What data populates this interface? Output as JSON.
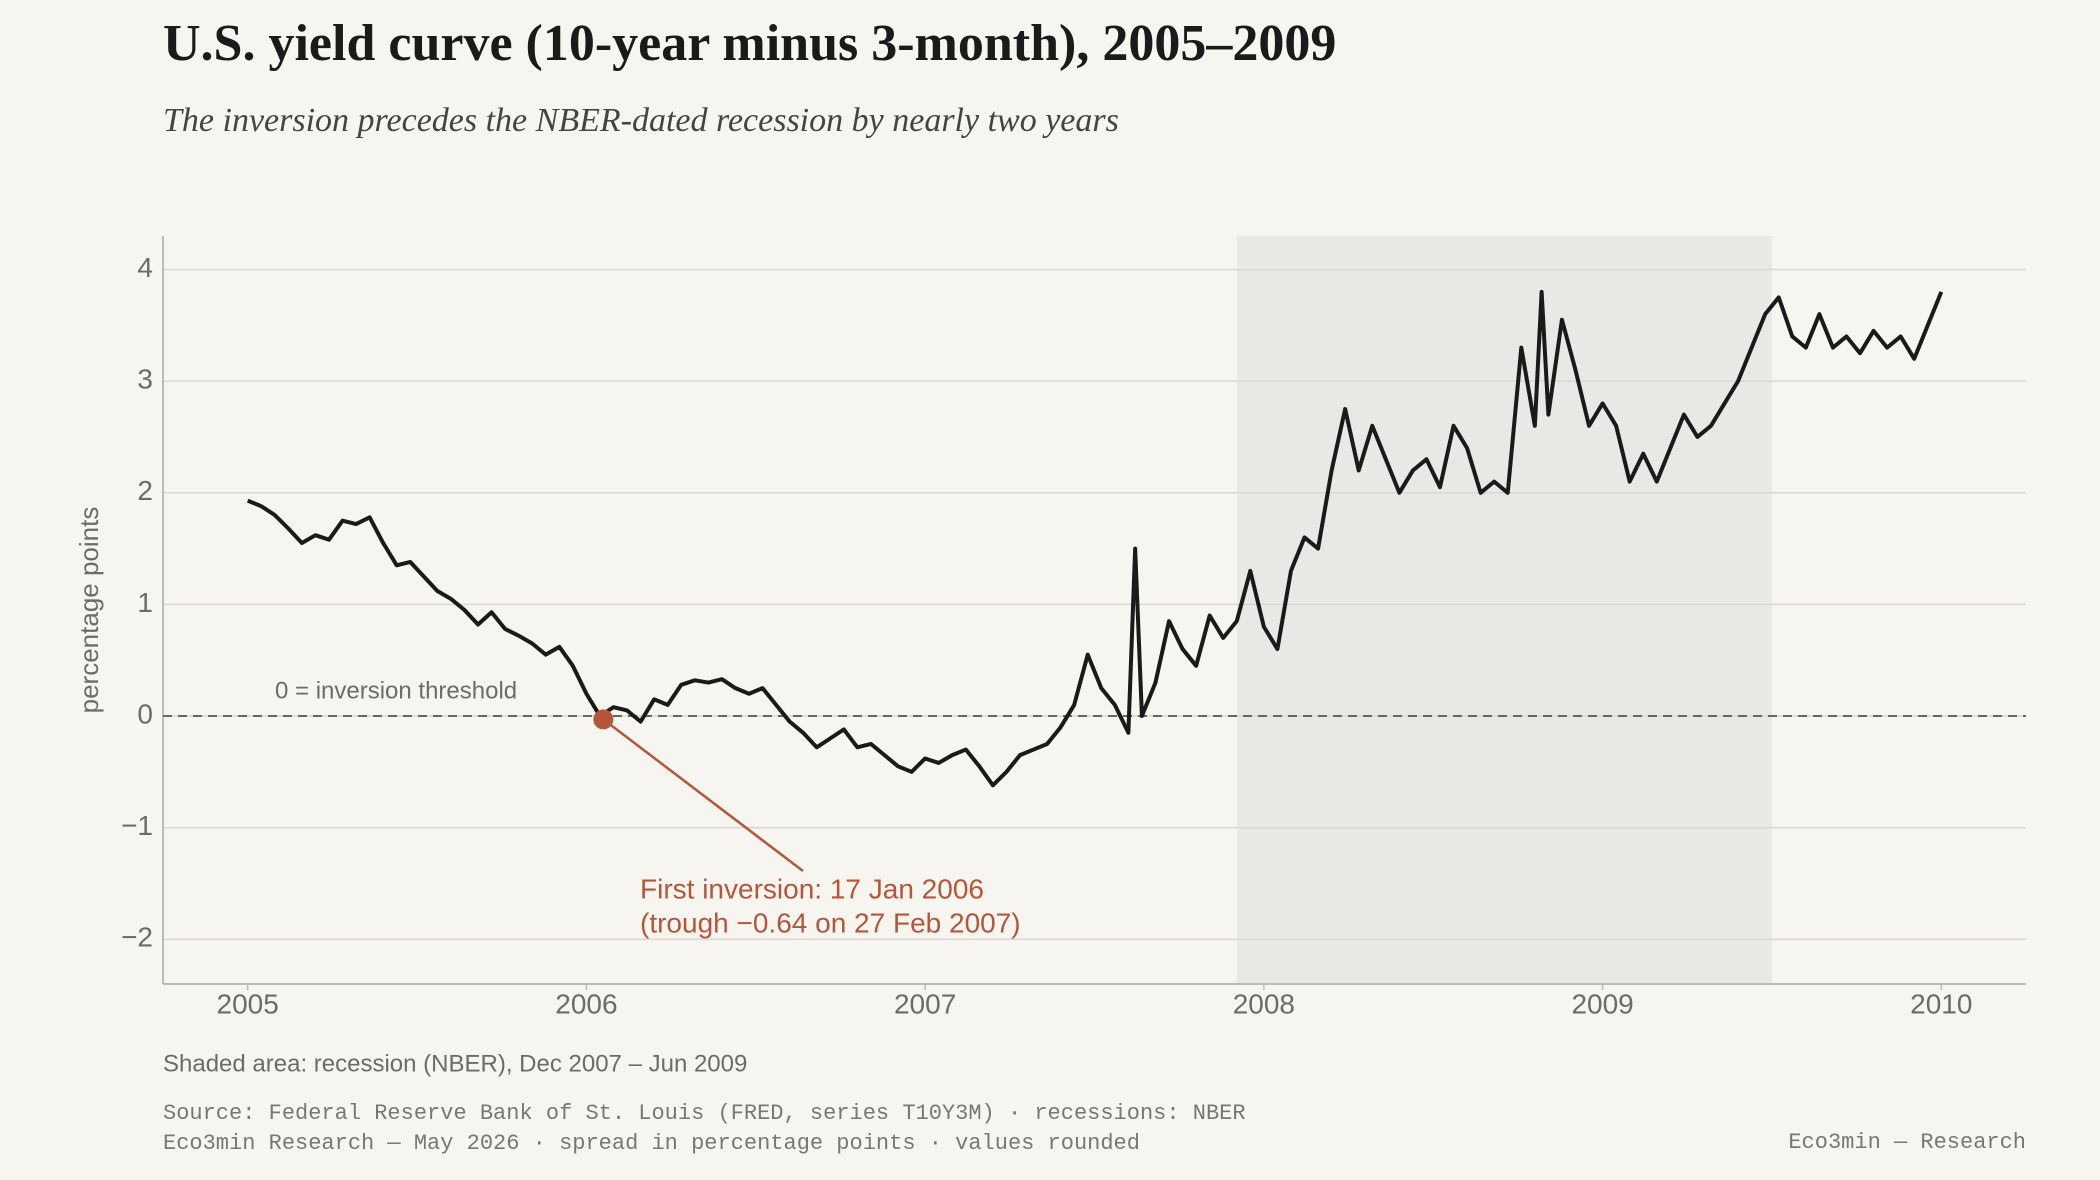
{
  "chart_data": {
    "type": "line",
    "title": "U.S. yield curve (10-year minus 3-month), 2005–2009",
    "subtitle": "The inversion precedes the NBER-dated recession by nearly two years",
    "y_label": "percentage points",
    "color": "#1a1a1a",
    "x": [
      2005.0,
      2005.04,
      2005.08,
      2005.12,
      2005.16,
      2005.2,
      2005.24,
      2005.28,
      2005.32,
      2005.36,
      2005.4,
      2005.44,
      2005.48,
      2005.52,
      2005.56,
      2005.6,
      2005.64,
      2005.68,
      2005.72,
      2005.76,
      2005.8,
      2005.84,
      2005.88,
      2005.92,
      2005.96,
      2006.0,
      2006.04,
      2006.08,
      2006.12,
      2006.16,
      2006.2,
      2006.24,
      2006.28,
      2006.32,
      2006.36,
      2006.4,
      2006.44,
      2006.48,
      2006.52,
      2006.56,
      2006.6,
      2006.64,
      2006.68,
      2006.72,
      2006.76,
      2006.8,
      2006.84,
      2006.88,
      2006.92,
      2006.96,
      2007.0,
      2007.04,
      2007.08,
      2007.12,
      2007.16,
      2007.2,
      2007.24,
      2007.28,
      2007.32,
      2007.36,
      2007.4,
      2007.44,
      2007.48,
      2007.52,
      2007.56,
      2007.6,
      2007.62,
      2007.64,
      2007.68,
      2007.72,
      2007.76,
      2007.8,
      2007.84,
      2007.88,
      2007.92,
      2007.96,
      2008.0,
      2008.04,
      2008.08,
      2008.12,
      2008.16,
      2008.2,
      2008.24,
      2008.28,
      2008.32,
      2008.36,
      2008.4,
      2008.44,
      2008.48,
      2008.52,
      2008.56,
      2008.6,
      2008.64,
      2008.68,
      2008.72,
      2008.76,
      2008.8,
      2008.82,
      2008.84,
      2008.88,
      2008.92,
      2008.96,
      2009.0,
      2009.04,
      2009.08,
      2009.12,
      2009.16,
      2009.2,
      2009.24,
      2009.28,
      2009.32,
      2009.36,
      2009.4,
      2009.44,
      2009.48,
      2009.52,
      2009.56,
      2009.6,
      2009.64,
      2009.68,
      2009.72,
      2009.76,
      2009.8,
      2009.84,
      2009.88,
      2009.92,
      2009.96,
      2010.0
    ],
    "values": [
      1.93,
      1.88,
      1.8,
      1.68,
      1.55,
      1.62,
      1.58,
      1.75,
      1.72,
      1.78,
      1.55,
      1.35,
      1.38,
      1.25,
      1.12,
      1.05,
      0.95,
      0.82,
      0.93,
      0.78,
      0.72,
      0.65,
      0.55,
      0.62,
      0.45,
      0.2,
      0.0,
      0.08,
      0.05,
      -0.05,
      0.15,
      0.1,
      0.28,
      0.32,
      0.3,
      0.33,
      0.25,
      0.2,
      0.25,
      0.1,
      -0.05,
      -0.15,
      -0.28,
      -0.2,
      -0.12,
      -0.28,
      -0.25,
      -0.35,
      -0.45,
      -0.5,
      -0.38,
      -0.42,
      -0.35,
      -0.3,
      -0.45,
      -0.62,
      -0.5,
      -0.35,
      -0.3,
      -0.25,
      -0.1,
      0.1,
      0.55,
      0.25,
      0.1,
      -0.15,
      1.5,
      0.0,
      0.3,
      0.85,
      0.6,
      0.45,
      0.9,
      0.7,
      0.85,
      1.3,
      0.8,
      0.6,
      1.3,
      1.6,
      1.5,
      2.2,
      2.75,
      2.2,
      2.6,
      2.3,
      2.0,
      2.2,
      2.3,
      2.05,
      2.6,
      2.4,
      2.0,
      2.1,
      2.0,
      3.3,
      2.6,
      3.8,
      2.7,
      3.55,
      3.1,
      2.6,
      2.8,
      2.6,
      2.1,
      2.35,
      2.1,
      2.4,
      2.7,
      2.5,
      2.6,
      2.8,
      3.0,
      3.3,
      3.6,
      3.75,
      3.4,
      3.3,
      3.6,
      3.3,
      3.4,
      3.25,
      3.45,
      3.3,
      3.4,
      3.2,
      3.5,
      3.8
    ],
    "xlim": [
      2004.75,
      2010.25
    ],
    "xticks": [
      2005,
      2006,
      2007,
      2008,
      2009,
      2010
    ],
    "ylim": [
      -2.4,
      4.3
    ],
    "yticks": [
      {
        "value": -2,
        "label": "−2"
      },
      {
        "value": -1,
        "label": "−1"
      },
      0,
      1,
      2,
      3,
      4
    ],
    "grid": true,
    "recession": {
      "start": 2007.92,
      "end": 2009.5,
      "color": "#e9e8e4"
    },
    "reference_line": {
      "value": 0,
      "label": "0 = inversion threshold"
    },
    "annotation": {
      "x": 2006.05,
      "y": -0.03,
      "color": "#b5563a",
      "lines": [
        "First inversion: 17 Jan 2006",
        "(trough −0.64 on 27 Feb 2007)"
      ]
    },
    "note": "Shaded area: recession (NBER), Dec 2007 – Jun 2009",
    "source_lines": [
      "Source: Federal Reserve Bank of St. Louis (FRED, series T10Y3M) · recessions: NBER",
      "Eco3min Research — May 2026 · spread in percentage points · values rounded"
    ],
    "credit": "Eco3min — Research"
  }
}
